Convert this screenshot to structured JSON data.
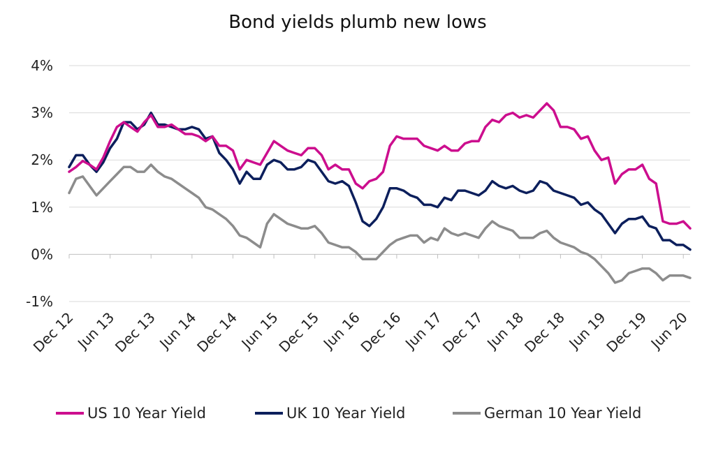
{
  "chart_data": {
    "type": "line",
    "title": "Bond yields plumb new lows",
    "xlabel": "",
    "ylabel": "",
    "ylim": [
      -1,
      4
    ],
    "y_unit": "%",
    "y_ticks": [
      "-1%",
      "0%",
      "1%",
      "2%",
      "3%",
      "4%"
    ],
    "y_tick_values": [
      -1,
      0,
      1,
      2,
      3,
      4
    ],
    "x_ticks": [
      "Dec 12",
      "Jun 13",
      "Dec 13",
      "Jun 14",
      "Dec 14",
      "Jun 15",
      "Dec 15",
      "Jun 16",
      "Dec 16",
      "Jun 17",
      "Dec 17",
      "Jun 18",
      "Dec 18",
      "Jun 19",
      "Dec 19",
      "Jun 20"
    ],
    "x_range": [
      "Dec 12",
      "Jul 20"
    ],
    "grid": "horizontal",
    "legend_position": "bottom",
    "x": [
      "Dec 12",
      "Jan 13",
      "Feb 13",
      "Mar 13",
      "Apr 13",
      "May 13",
      "Jun 13",
      "Jul 13",
      "Aug 13",
      "Sep 13",
      "Oct 13",
      "Nov 13",
      "Dec 13",
      "Jan 14",
      "Feb 14",
      "Mar 14",
      "Apr 14",
      "May 14",
      "Jun 14",
      "Jul 14",
      "Aug 14",
      "Sep 14",
      "Oct 14",
      "Nov 14",
      "Dec 14",
      "Jan 15",
      "Feb 15",
      "Mar 15",
      "Apr 15",
      "May 15",
      "Jun 15",
      "Jul 15",
      "Aug 15",
      "Sep 15",
      "Oct 15",
      "Nov 15",
      "Dec 15",
      "Jan 16",
      "Feb 16",
      "Mar 16",
      "Apr 16",
      "May 16",
      "Jun 16",
      "Jul 16",
      "Aug 16",
      "Sep 16",
      "Oct 16",
      "Nov 16",
      "Dec 16",
      "Jan 17",
      "Feb 17",
      "Mar 17",
      "Apr 17",
      "May 17",
      "Jun 17",
      "Jul 17",
      "Aug 17",
      "Sep 17",
      "Oct 17",
      "Nov 17",
      "Dec 17",
      "Jan 18",
      "Feb 18",
      "Mar 18",
      "Apr 18",
      "May 18",
      "Jun 18",
      "Jul 18",
      "Aug 18",
      "Sep 18",
      "Oct 18",
      "Nov 18",
      "Dec 18",
      "Jan 19",
      "Feb 19",
      "Mar 19",
      "Apr 19",
      "May 19",
      "Jun 19",
      "Jul 19",
      "Aug 19",
      "Sep 19",
      "Oct 19",
      "Nov 19",
      "Dec 19",
      "Jan 20",
      "Feb 20",
      "Mar 20",
      "Apr 20",
      "May 20",
      "Jun 20",
      "Jul 20"
    ],
    "series": [
      {
        "name": "US 10 Year Yield",
        "color": "#cc0e8e",
        "values": [
          1.75,
          1.85,
          1.98,
          1.9,
          1.8,
          2.05,
          2.4,
          2.7,
          2.8,
          2.7,
          2.6,
          2.8,
          2.95,
          2.7,
          2.7,
          2.75,
          2.65,
          2.55,
          2.55,
          2.5,
          2.4,
          2.5,
          2.3,
          2.3,
          2.2,
          1.8,
          2.0,
          1.95,
          1.9,
          2.15,
          2.4,
          2.3,
          2.2,
          2.15,
          2.1,
          2.25,
          2.25,
          2.1,
          1.8,
          1.9,
          1.8,
          1.8,
          1.5,
          1.4,
          1.55,
          1.6,
          1.75,
          2.3,
          2.5,
          2.45,
          2.45,
          2.45,
          2.3,
          2.25,
          2.2,
          2.3,
          2.2,
          2.2,
          2.35,
          2.4,
          2.4,
          2.7,
          2.85,
          2.8,
          2.95,
          3.0,
          2.9,
          2.95,
          2.9,
          3.05,
          3.2,
          3.05,
          2.7,
          2.7,
          2.65,
          2.45,
          2.5,
          2.2,
          2.0,
          2.05,
          1.5,
          1.7,
          1.8,
          1.8,
          1.9,
          1.6,
          1.5,
          0.7,
          0.65,
          0.65,
          0.7,
          0.55
        ]
      },
      {
        "name": "UK 10 Year Yield",
        "color": "#0c1f5c",
        "values": [
          1.85,
          2.1,
          2.1,
          1.9,
          1.75,
          1.95,
          2.25,
          2.45,
          2.8,
          2.8,
          2.65,
          2.75,
          3.0,
          2.75,
          2.75,
          2.7,
          2.65,
          2.65,
          2.7,
          2.65,
          2.45,
          2.5,
          2.15,
          2.0,
          1.8,
          1.5,
          1.75,
          1.6,
          1.6,
          1.9,
          2.0,
          1.95,
          1.8,
          1.8,
          1.85,
          2.0,
          1.95,
          1.75,
          1.55,
          1.5,
          1.55,
          1.45,
          1.1,
          0.7,
          0.6,
          0.75,
          1.0,
          1.4,
          1.4,
          1.35,
          1.25,
          1.2,
          1.05,
          1.05,
          1.0,
          1.2,
          1.15,
          1.35,
          1.35,
          1.3,
          1.25,
          1.35,
          1.55,
          1.45,
          1.4,
          1.45,
          1.35,
          1.3,
          1.35,
          1.55,
          1.5,
          1.35,
          1.3,
          1.25,
          1.2,
          1.05,
          1.1,
          0.95,
          0.85,
          0.65,
          0.45,
          0.65,
          0.75,
          0.75,
          0.8,
          0.6,
          0.55,
          0.3,
          0.3,
          0.2,
          0.2,
          0.1
        ]
      },
      {
        "name": "German 10 Year Yield",
        "color": "#8c8c8c",
        "values": [
          1.3,
          1.6,
          1.65,
          1.45,
          1.25,
          1.4,
          1.55,
          1.7,
          1.85,
          1.85,
          1.75,
          1.75,
          1.9,
          1.75,
          1.65,
          1.6,
          1.5,
          1.4,
          1.3,
          1.2,
          1.0,
          0.95,
          0.85,
          0.75,
          0.6,
          0.4,
          0.35,
          0.25,
          0.15,
          0.65,
          0.85,
          0.75,
          0.65,
          0.6,
          0.55,
          0.55,
          0.6,
          0.45,
          0.25,
          0.2,
          0.15,
          0.15,
          0.05,
          -0.1,
          -0.1,
          -0.1,
          0.05,
          0.2,
          0.3,
          0.35,
          0.4,
          0.4,
          0.25,
          0.35,
          0.3,
          0.55,
          0.45,
          0.4,
          0.45,
          0.4,
          0.35,
          0.55,
          0.7,
          0.6,
          0.55,
          0.5,
          0.35,
          0.35,
          0.35,
          0.45,
          0.5,
          0.35,
          0.25,
          0.2,
          0.15,
          0.05,
          0.0,
          -0.1,
          -0.25,
          -0.4,
          -0.6,
          -0.55,
          -0.4,
          -0.35,
          -0.3,
          -0.3,
          -0.4,
          -0.55,
          -0.45,
          -0.45,
          -0.45,
          -0.5
        ]
      }
    ]
  }
}
